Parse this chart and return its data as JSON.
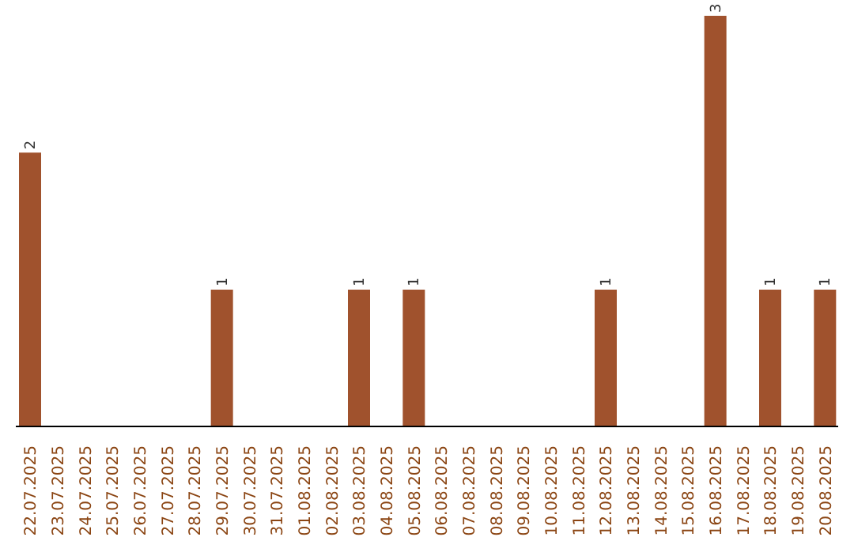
{
  "chart_data": {
    "type": "bar",
    "categories": [
      "22.07.2025",
      "23.07.2025",
      "24.07.2025",
      "25.07.2025",
      "26.07.2025",
      "27.07.2025",
      "28.07.2025",
      "29.07.2025",
      "30.07.2025",
      "31.07.2025",
      "01.08.2025",
      "02.08.2025",
      "03.08.2025",
      "04.08.2025",
      "05.08.2025",
      "06.08.2025",
      "07.08.2025",
      "08.08.2025",
      "09.08.2025",
      "10.08.2025",
      "11.08.2025",
      "12.08.2025",
      "13.08.2025",
      "14.08.2025",
      "15.08.2025",
      "16.08.2025",
      "17.08.2025",
      "18.08.2025",
      "19.08.2025",
      "20.08.2025"
    ],
    "values": [
      2,
      0,
      0,
      0,
      0,
      0,
      0,
      1,
      0,
      0,
      0,
      0,
      1,
      0,
      1,
      0,
      0,
      0,
      0,
      0,
      0,
      1,
      0,
      0,
      0,
      3,
      0,
      1,
      0,
      1
    ],
    "value_labels": [
      "2",
      null,
      null,
      null,
      null,
      null,
      null,
      "1",
      null,
      null,
      null,
      null,
      "1",
      null,
      "1",
      null,
      null,
      null,
      null,
      null,
      null,
      "1",
      null,
      null,
      null,
      "3",
      null,
      "1",
      null,
      "1"
    ],
    "color": "#a0522d",
    "tick_labels": "x"
  }
}
